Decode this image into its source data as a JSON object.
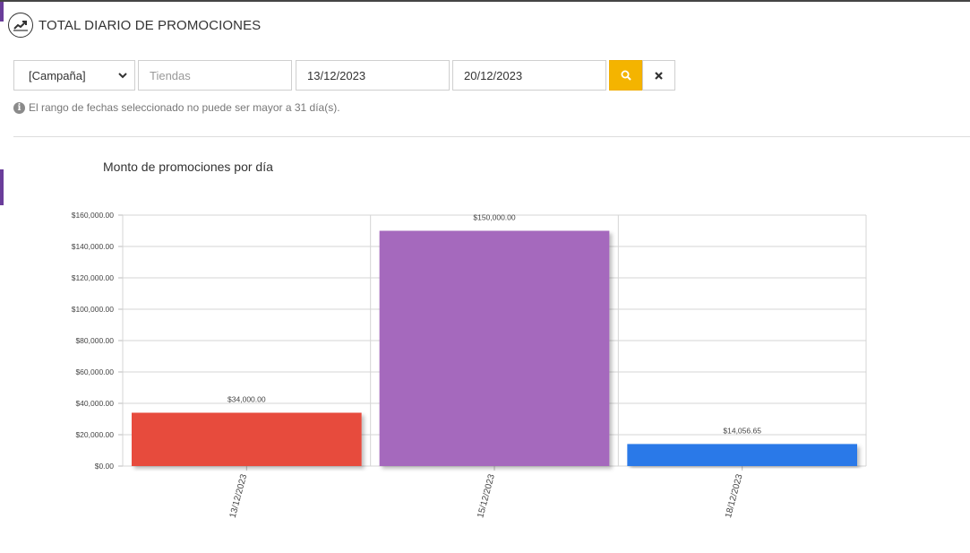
{
  "header": {
    "title": "TOTAL DIARIO DE PROMOCIONES",
    "icon": "trend-chart-icon"
  },
  "filters": {
    "campaign_value": "[Campaña]",
    "stores_placeholder": "Tiendas",
    "date_from": "13/12/2023",
    "date_to": "20/12/2023",
    "search_icon": "search-icon",
    "clear_icon": "close-icon",
    "accent_color": "#f4b400"
  },
  "info": {
    "message": "El rango de fechas seleccionado no puede ser mayor a 31 día(s)."
  },
  "chart_data": {
    "type": "bar",
    "title": "Monto de promociones por día",
    "xlabel": "",
    "ylabel": "",
    "categories": [
      "13/12/2023",
      "15/12/2023",
      "18/12/2023"
    ],
    "values": [
      34000.0,
      150000.0,
      14056.65
    ],
    "value_labels": [
      "$34,000.00",
      "$150,000.00",
      "$14,056.65"
    ],
    "colors": [
      "#e74c3c",
      "#a569bd",
      "#2979e8"
    ],
    "yticks": [
      "$0.00",
      "$20,000.00",
      "$40,000.00",
      "$60,000.00",
      "$80,000.00",
      "$100,000.00",
      "$120,000.00",
      "$140,000.00",
      "$160,000.00"
    ],
    "ylim": [
      0,
      160000
    ],
    "grid": true,
    "legend": "none"
  }
}
